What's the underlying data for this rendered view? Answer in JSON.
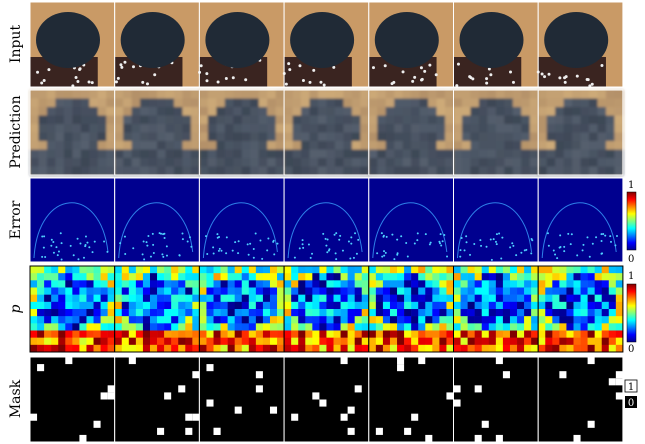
{
  "rows": [
    {
      "label": "Input"
    },
    {
      "label": "Prediction"
    },
    {
      "label": "Error"
    },
    {
      "label": "p"
    },
    {
      "label": "Mask"
    }
  ],
  "error_colorbar": {
    "max": 1,
    "min": 0
  },
  "p_colorbar": {
    "max": 1,
    "min": 0
  },
  "mask_legend": {
    "one": 1,
    "zero": 0
  }
}
